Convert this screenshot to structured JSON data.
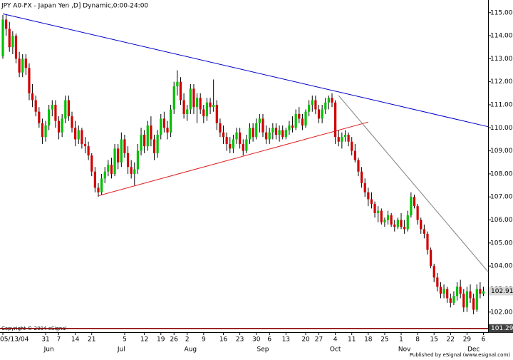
{
  "chart_data": {
    "type": "candlestick",
    "title": "JPY A0-FX - Japan Yen ,D] Dynamic,0:00-24:00",
    "copyright": "Copyright © 2004 eSignal",
    "publisher": "Published by eSignal (www.esignal.com)",
    "up_color": "#00c000",
    "down_color": "#d00000",
    "ylim": [
      101.25,
      115.55
    ],
    "yticks": [
      {
        "value": 102,
        "label": "102.00"
      },
      {
        "value": 103,
        "label": "103.00"
      },
      {
        "value": 104,
        "label": "104.00"
      },
      {
        "value": 105,
        "label": "105.00"
      },
      {
        "value": 106,
        "label": "106.00"
      },
      {
        "value": 107,
        "label": "107.00"
      },
      {
        "value": 108,
        "label": "108.00"
      },
      {
        "value": 109,
        "label": "109.00"
      },
      {
        "value": 110,
        "label": "110.00"
      },
      {
        "value": 111,
        "label": "111.00"
      },
      {
        "value": 112,
        "label": "112.00"
      },
      {
        "value": 113,
        "label": "113.00"
      },
      {
        "value": 114,
        "label": "114.00"
      },
      {
        "value": 115,
        "label": "115.00"
      }
    ],
    "last_price": 102.91,
    "low_line": 101.29,
    "xticks": [
      {
        "value": 0,
        "label": "05/13/04"
      },
      {
        "value": 13,
        "label": "31"
      },
      {
        "value": 17,
        "label": "7"
      },
      {
        "value": 22,
        "label": "14"
      },
      {
        "value": 27,
        "label": "21"
      },
      {
        "value": 37,
        "label": "5"
      },
      {
        "value": 43,
        "label": "12"
      },
      {
        "value": 48,
        "label": "19"
      },
      {
        "value": 52,
        "label": "26"
      },
      {
        "value": 56,
        "label": "2"
      },
      {
        "value": 61,
        "label": "9"
      },
      {
        "value": 67,
        "label": "16"
      },
      {
        "value": 72,
        "label": "23"
      },
      {
        "value": 77,
        "label": "30"
      },
      {
        "value": 81,
        "label": "6"
      },
      {
        "value": 86,
        "label": "13"
      },
      {
        "value": 92,
        "label": "20"
      },
      {
        "value": 96,
        "label": "27"
      },
      {
        "value": 101,
        "label": "4"
      },
      {
        "value": 106,
        "label": "11"
      },
      {
        "value": 111,
        "label": "18"
      },
      {
        "value": 116,
        "label": "25"
      },
      {
        "value": 121,
        "label": "1"
      },
      {
        "value": 126,
        "label": "8"
      },
      {
        "value": 131,
        "label": "15"
      },
      {
        "value": 136,
        "label": "22"
      },
      {
        "value": 141,
        "label": "29"
      },
      {
        "value": 146,
        "label": "6"
      }
    ],
    "months": [
      {
        "value": 14,
        "label": "Jun"
      },
      {
        "value": 36,
        "label": "Jul"
      },
      {
        "value": 57,
        "label": "Aug"
      },
      {
        "value": 79,
        "label": "Sep"
      },
      {
        "value": 101,
        "label": "Oct"
      },
      {
        "value": 122,
        "label": "Nov"
      },
      {
        "value": 143,
        "label": "Dec"
      }
    ],
    "trendlines": [
      {
        "color": "#0000cc",
        "start": [
          0,
          114.95
        ],
        "end": [
          147.4,
          110.05
        ]
      },
      {
        "color": "#e02020",
        "start": [
          29,
          107.05
        ],
        "end": [
          111,
          110.25
        ]
      },
      {
        "color": "#808080",
        "start": [
          102,
          111.4
        ],
        "end": [
          147.4,
          103.75
        ]
      }
    ],
    "ohlc": [
      [
        113.1,
        114.9,
        113.0,
        114.7
      ],
      [
        114.7,
        114.9,
        114.0,
        114.3
      ],
      [
        114.3,
        114.6,
        113.3,
        113.5
      ],
      [
        113.5,
        114.2,
        113.2,
        114.0
      ],
      [
        114.0,
        114.1,
        112.8,
        113.0
      ],
      [
        113.0,
        113.3,
        112.2,
        112.4
      ],
      [
        112.4,
        113.2,
        112.2,
        113.0
      ],
      [
        113.0,
        113.2,
        112.3,
        112.6
      ],
      [
        112.6,
        112.8,
        111.2,
        111.5
      ],
      [
        111.5,
        111.9,
        110.9,
        111.2
      ],
      [
        111.2,
        111.4,
        110.5,
        110.7
      ],
      [
        110.7,
        110.9,
        110.0,
        110.2
      ],
      [
        110.2,
        110.4,
        109.3,
        109.6
      ],
      [
        109.6,
        110.3,
        109.4,
        110.1
      ],
      [
        110.1,
        111.0,
        109.9,
        110.8
      ],
      [
        110.8,
        111.2,
        110.5,
        111.0
      ],
      [
        111.0,
        111.2,
        110.0,
        110.3
      ],
      [
        110.3,
        110.5,
        109.5,
        109.8
      ],
      [
        109.8,
        110.6,
        109.6,
        110.4
      ],
      [
        110.4,
        111.4,
        110.2,
        111.2
      ],
      [
        111.2,
        111.4,
        110.3,
        110.5
      ],
      [
        110.5,
        110.7,
        109.8,
        110.0
      ],
      [
        110.0,
        110.3,
        109.2,
        109.5
      ],
      [
        109.5,
        110.1,
        109.3,
        109.9
      ],
      [
        109.9,
        110.0,
        109.1,
        109.3
      ],
      [
        109.3,
        109.6,
        108.9,
        109.2
      ],
      [
        109.2,
        109.4,
        108.6,
        108.8
      ],
      [
        108.8,
        108.9,
        107.9,
        108.1
      ],
      [
        108.1,
        108.3,
        107.2,
        107.4
      ],
      [
        107.4,
        107.6,
        107.0,
        107.2
      ],
      [
        107.2,
        108.0,
        107.1,
        107.8
      ],
      [
        107.8,
        108.3,
        107.6,
        108.1
      ],
      [
        108.1,
        108.6,
        107.9,
        108.4
      ],
      [
        108.4,
        108.7,
        107.8,
        108.0
      ],
      [
        108.0,
        109.3,
        107.9,
        109.1
      ],
      [
        109.1,
        109.3,
        108.2,
        108.5
      ],
      [
        108.5,
        109.8,
        108.3,
        109.5
      ],
      [
        109.5,
        109.7,
        108.7,
        108.9
      ],
      [
        108.9,
        109.2,
        108.0,
        108.3
      ],
      [
        108.3,
        108.6,
        107.8,
        108.0
      ],
      [
        108.0,
        108.5,
        107.5,
        108.2
      ],
      [
        108.2,
        109.3,
        108.0,
        109.0
      ],
      [
        109.0,
        110.0,
        108.8,
        109.7
      ],
      [
        109.7,
        109.9,
        108.9,
        109.2
      ],
      [
        109.2,
        110.3,
        109.0,
        110.1
      ],
      [
        110.1,
        110.5,
        109.2,
        109.5
      ],
      [
        109.5,
        109.7,
        108.6,
        108.9
      ],
      [
        108.9,
        109.9,
        108.7,
        109.7
      ],
      [
        109.7,
        110.6,
        109.5,
        110.4
      ],
      [
        110.4,
        110.7,
        109.8,
        110.0
      ],
      [
        110.0,
        110.3,
        109.5,
        109.8
      ],
      [
        109.8,
        111.0,
        109.6,
        110.8
      ],
      [
        110.8,
        112.0,
        110.6,
        111.8
      ],
      [
        111.8,
        112.5,
        111.4,
        112.0
      ],
      [
        112.0,
        112.2,
        111.0,
        111.2
      ],
      [
        111.2,
        111.5,
        110.4,
        110.6
      ],
      [
        110.6,
        111.0,
        110.3,
        110.8
      ],
      [
        110.8,
        111.9,
        110.6,
        111.7
      ],
      [
        111.7,
        111.9,
        110.6,
        110.9
      ],
      [
        110.9,
        111.5,
        110.2,
        111.3
      ],
      [
        111.3,
        111.5,
        110.6,
        110.8
      ],
      [
        110.8,
        111.0,
        110.2,
        110.5
      ],
      [
        110.5,
        111.3,
        110.3,
        111.1
      ],
      [
        111.1,
        111.3,
        110.6,
        110.9
      ],
      [
        110.9,
        112.1,
        110.7,
        111.0
      ],
      [
        111.0,
        111.2,
        109.9,
        110.2
      ],
      [
        110.2,
        110.4,
        109.6,
        109.8
      ],
      [
        109.8,
        110.1,
        109.3,
        109.6
      ],
      [
        109.6,
        109.8,
        109.0,
        109.3
      ],
      [
        109.3,
        109.6,
        108.9,
        109.1
      ],
      [
        109.1,
        109.7,
        108.9,
        109.5
      ],
      [
        109.5,
        110.0,
        109.3,
        109.8
      ],
      [
        109.8,
        110.0,
        109.1,
        109.3
      ],
      [
        109.3,
        109.5,
        108.8,
        109.0
      ],
      [
        109.0,
        109.7,
        108.9,
        109.5
      ],
      [
        109.5,
        110.2,
        109.3,
        110.0
      ],
      [
        110.0,
        110.2,
        109.4,
        109.6
      ],
      [
        109.6,
        110.4,
        109.5,
        110.2
      ],
      [
        110.2,
        110.6,
        109.8,
        110.4
      ],
      [
        110.4,
        110.6,
        109.6,
        109.8
      ],
      [
        109.8,
        110.1,
        109.3,
        109.5
      ],
      [
        109.5,
        110.0,
        109.3,
        109.8
      ],
      [
        109.8,
        110.2,
        109.5,
        110.0
      ],
      [
        110.0,
        110.2,
        109.5,
        109.7
      ],
      [
        109.7,
        110.1,
        109.4,
        109.9
      ],
      [
        109.9,
        110.1,
        109.5,
        109.6
      ],
      [
        109.6,
        110.0,
        109.5,
        109.9
      ],
      [
        109.9,
        110.3,
        109.7,
        110.1
      ],
      [
        110.1,
        110.5,
        109.8,
        110.0
      ],
      [
        110.0,
        110.8,
        109.9,
        110.6
      ],
      [
        110.6,
        110.9,
        110.2,
        110.4
      ],
      [
        110.4,
        110.6,
        109.9,
        110.1
      ],
      [
        110.1,
        110.8,
        110.0,
        110.7
      ],
      [
        110.7,
        111.2,
        110.5,
        111.0
      ],
      [
        111.0,
        111.4,
        110.7,
        111.2
      ],
      [
        111.2,
        111.4,
        110.6,
        110.8
      ],
      [
        110.8,
        111.0,
        110.2,
        110.4
      ],
      [
        110.4,
        111.0,
        110.2,
        110.8
      ],
      [
        110.8,
        111.3,
        110.6,
        111.1
      ],
      [
        111.1,
        111.4,
        110.8,
        111.3
      ],
      [
        111.3,
        111.5,
        110.9,
        111.1
      ],
      [
        111.1,
        111.2,
        109.3,
        109.6
      ],
      [
        109.6,
        109.9,
        109.2,
        109.4
      ],
      [
        109.4,
        109.8,
        109.1,
        109.6
      ],
      [
        109.6,
        109.9,
        109.4,
        109.7
      ],
      [
        109.7,
        109.8,
        109.2,
        109.4
      ],
      [
        109.4,
        109.6,
        108.8,
        109.0
      ],
      [
        109.0,
        109.3,
        108.5,
        108.6
      ],
      [
        108.6,
        108.7,
        107.9,
        108.1
      ],
      [
        108.1,
        108.3,
        107.4,
        107.6
      ],
      [
        107.6,
        107.8,
        107.0,
        107.2
      ],
      [
        107.2,
        107.4,
        106.6,
        106.9
      ],
      [
        106.9,
        107.2,
        106.5,
        106.7
      ],
      [
        106.7,
        106.8,
        106.1,
        106.3
      ],
      [
        106.3,
        106.6,
        105.9,
        106.4
      ],
      [
        106.4,
        106.5,
        105.8,
        105.9
      ],
      [
        105.9,
        106.1,
        105.7,
        106.0
      ],
      [
        106.0,
        106.4,
        105.8,
        106.2
      ],
      [
        106.2,
        106.3,
        105.7,
        105.8
      ],
      [
        105.8,
        106.0,
        105.5,
        105.7
      ],
      [
        105.7,
        106.1,
        105.6,
        106.0
      ],
      [
        106.0,
        106.3,
        105.6,
        105.7
      ],
      [
        105.7,
        106.0,
        105.4,
        105.6
      ],
      [
        105.6,
        106.4,
        105.5,
        106.2
      ],
      [
        106.2,
        107.2,
        106.1,
        107.0
      ],
      [
        107.0,
        107.1,
        106.5,
        106.6
      ],
      [
        106.6,
        106.7,
        105.8,
        106.0
      ],
      [
        106.0,
        106.1,
        105.4,
        105.6
      ],
      [
        105.6,
        105.8,
        105.2,
        105.4
      ],
      [
        105.4,
        105.5,
        104.5,
        104.7
      ],
      [
        104.7,
        104.8,
        103.9,
        104.0
      ],
      [
        104.0,
        104.1,
        103.3,
        103.5
      ],
      [
        103.5,
        103.7,
        102.9,
        103.1
      ],
      [
        103.1,
        103.3,
        102.6,
        102.8
      ],
      [
        102.8,
        103.2,
        102.6,
        103.0
      ],
      [
        103.0,
        103.1,
        102.4,
        102.6
      ],
      [
        102.6,
        102.8,
        102.2,
        102.4
      ],
      [
        102.4,
        102.9,
        102.3,
        102.7
      ],
      [
        102.7,
        103.3,
        102.5,
        103.1
      ],
      [
        103.1,
        103.4,
        102.6,
        102.8
      ],
      [
        102.8,
        103.0,
        102.0,
        102.2
      ],
      [
        102.2,
        103.1,
        102.0,
        102.9
      ],
      [
        102.9,
        103.2,
        102.4,
        102.6
      ],
      [
        102.6,
        102.8,
        101.9,
        102.1
      ],
      [
        102.1,
        103.2,
        102.0,
        103.0
      ],
      [
        103.0,
        103.3,
        102.6,
        102.8
      ],
      [
        102.8,
        103.1,
        102.7,
        102.91
      ]
    ]
  }
}
